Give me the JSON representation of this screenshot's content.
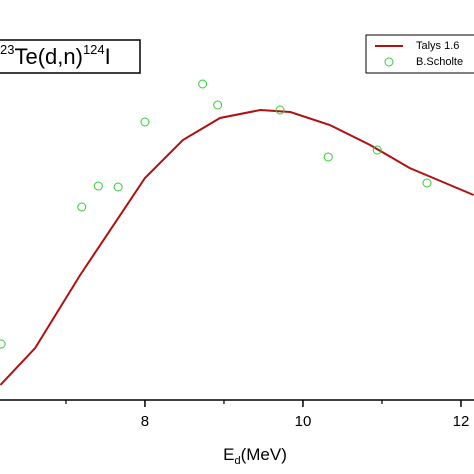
{
  "chart_data": {
    "type": "line",
    "title_parts": [
      "23",
      "Te(d,n)",
      "124",
      "I"
    ],
    "xlabel_parts": [
      "E",
      "d",
      "(MeV)"
    ],
    "xlim": [
      6.165,
      12.165
    ],
    "ylim": [
      0,
      100
    ],
    "xticks": [
      8,
      10,
      12
    ],
    "xminor_ticks": [
      7,
      9,
      11
    ],
    "series": [
      {
        "name": "Talys 1.6",
        "color": "#b01010",
        "style": "line",
        "x": [
          6.17,
          6.61,
          7.18,
          8.0,
          8.48,
          8.95,
          9.46,
          9.84,
          10.34,
          10.85,
          11.35,
          12.16
        ],
        "values": [
          3.75,
          13,
          31.25,
          55.5,
          65,
          70.5,
          72.5,
          72,
          68.75,
          63.75,
          58,
          51.25
        ]
      },
      {
        "name": "B.Scholte",
        "color": "#33cc33",
        "style": "marker",
        "x": [
          6.18,
          7.2,
          7.41,
          7.66,
          8.0,
          8.73,
          8.92,
          9.71,
          10.32,
          10.94,
          11.57
        ],
        "values": [
          14,
          48.25,
          53.5,
          53.25,
          69.5,
          79,
          73.75,
          72.5,
          60.75,
          62.5,
          54.25
        ]
      }
    ]
  }
}
